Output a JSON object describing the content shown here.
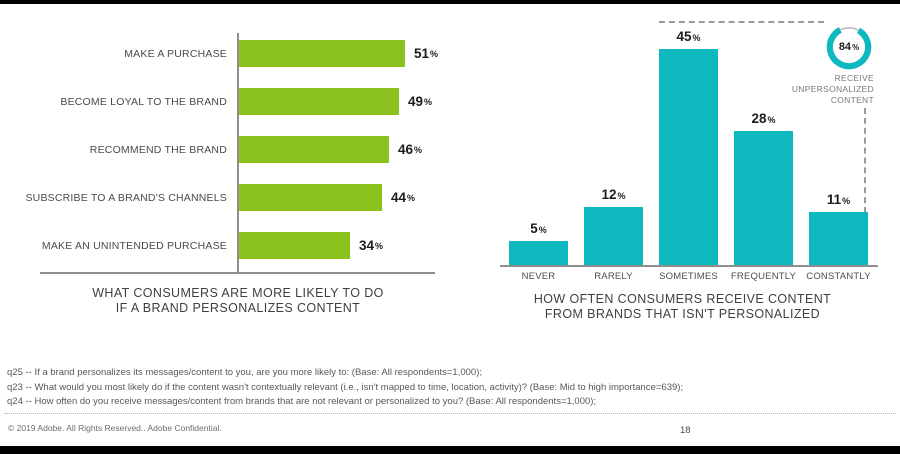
{
  "chart_data": [
    {
      "type": "bar",
      "orientation": "horizontal",
      "title_lines": [
        "WHAT CONSUMERS ARE MORE LIKELY TO DO",
        "IF A BRAND PERSONALIZES CONTENT"
      ],
      "categories": [
        "MAKE A PURCHASE",
        "BECOME LOYAL TO THE BRAND",
        "RECOMMEND THE BRAND",
        "SUBSCRIBE TO A BRAND'S CHANNELS",
        "MAKE AN UNINTENDED PURCHASE"
      ],
      "values": [
        51,
        49,
        46,
        44,
        34
      ],
      "unit": "%",
      "bar_color": "#8BC21E",
      "xlim": [
        0,
        60
      ],
      "grid": false,
      "legend": false
    },
    {
      "type": "bar",
      "orientation": "vertical",
      "title_lines": [
        "HOW OFTEN CONSUMERS RECEIVE CONTENT",
        "FROM BRANDS THAT ISN'T PERSONALIZED"
      ],
      "categories": [
        "NEVER",
        "RARELY",
        "SOMETIMES",
        "FREQUENTLY",
        "CONSTANTLY"
      ],
      "values": [
        5,
        12,
        45,
        28,
        11
      ],
      "unit": "%",
      "bar_color": "#0DB8BE",
      "ylim": [
        0,
        50
      ],
      "grid": false,
      "legend": false,
      "badge": {
        "value": 84,
        "unit": "%",
        "label_lines": [
          "RECEIVE",
          "UNPERSONALIZED",
          "CONTENT"
        ],
        "ring_color": "#0DB8BE"
      }
    }
  ],
  "footnotes": [
    "q25 -- If a brand personalizes its messages/content to you, are you more likely to: (Base: All respondents=1,000);",
    "q23 -- What would you most likely do if the content wasn't contextually relevant (i.e., isn't mapped to time, location, activity)? (Base: Mid to high importance=639);",
    "q24 -- How often do you receive messages/content from brands that are not relevant or personalized to you? (Base: All respondents=1,000);"
  ],
  "footer": {
    "copyright": "© 2019 Adobe.  All Rights Reserved..  Adobe Confidential.",
    "page_number": "18"
  }
}
